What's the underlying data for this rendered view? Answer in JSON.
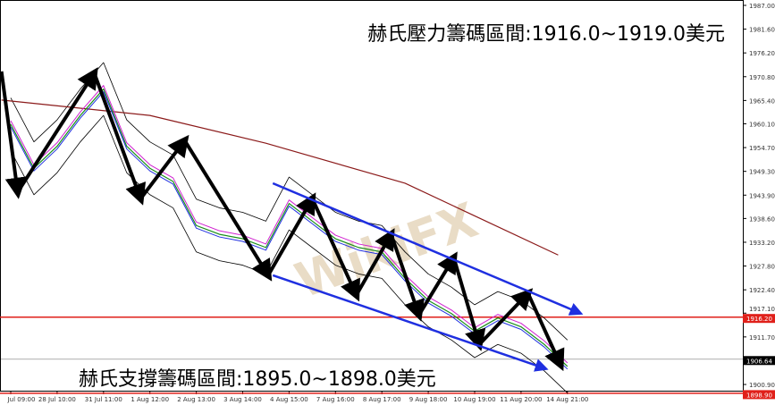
{
  "chart_data": {
    "type": "line",
    "annotations": {
      "resistance": "赫氏壓力籌碼區間:1916.0~1919.0美元",
      "support": "赫氏支撐籌碼區間:1895.0~1898.0美元"
    },
    "watermark": "WikiFX",
    "x_tick_labels": [
      "Jul 09:00",
      "28 Jul 10:00",
      "31 Jul 11:00",
      "1 Aug 12:00",
      "2 Aug 13:00",
      "3 Aug 14:00",
      "4 Aug 15:00",
      "7 Aug 16:00",
      "8 Aug 17:00",
      "9 Aug 18:00",
      "10 Aug 19:00",
      "11 Aug 20:00",
      "14 Aug 21:00"
    ],
    "y_tick_labels": [
      "1987.00",
      "1981.60",
      "1976.20",
      "1970.80",
      "1965.40",
      "1960.10",
      "1954.70",
      "1949.30",
      "1943.90",
      "1938.60",
      "1933.20",
      "1927.80",
      "1922.40",
      "1917.10",
      "1911.70",
      "1900.90"
    ],
    "ylim": [
      1895.5,
      1988.2
    ],
    "price": {
      "x": [
        0,
        0.5,
        1,
        1.5,
        2,
        2.5,
        3,
        3.5,
        4,
        4.5,
        5,
        5.5,
        6,
        6.5,
        7,
        7.5,
        8,
        8.5,
        9,
        9.5,
        10,
        10.5,
        11,
        11.5,
        12
      ],
      "y": [
        1960,
        1950,
        1955,
        1962,
        1968,
        1955,
        1950,
        1947,
        1937,
        1935,
        1934,
        1932,
        1942,
        1938,
        1934,
        1932,
        1931,
        1925,
        1920,
        1917,
        1913,
        1916,
        1914,
        1910,
        1905
      ],
      "color": "#1a8f1a"
    },
    "moving_average_long": {
      "x": [
        -0.2,
        3,
        5.5,
        8.5,
        11.8
      ],
      "y": [
        1965.5,
        1962,
        1955.7,
        1946.6,
        1930.3
      ],
      "color": "#8b1a1a"
    },
    "zigzag_arrows": {
      "x": [
        -0.2,
        0.15,
        1.8,
        2.8,
        3.75,
        5.55,
        6.5,
        7.45,
        8.2,
        8.8,
        9.55,
        10.1,
        11.15,
        11.85
      ],
      "y": [
        1972,
        1944.6,
        1971.6,
        1943.1,
        1956.3,
        1925.7,
        1943.1,
        1921.2,
        1935,
        1916.7,
        1929.7,
        1910,
        1921.6,
        1905.4
      ],
      "color": "#000000"
    },
    "channel": {
      "upper": {
        "x": [
          5.65,
          12.25
        ],
        "y": [
          1946.6,
          1917.2
        ]
      },
      "lower": {
        "x": [
          5.65,
          11.5
        ],
        "y": [
          1925.7,
          1904.6
        ]
      },
      "color": "#1f2fe0"
    },
    "horizontal_lines": [
      {
        "label": "1916.20",
        "value": 1916.2,
        "color": "#e0201a"
      },
      {
        "label": "1898.90",
        "value": 1898.9,
        "color": "#e0201a"
      },
      {
        "label": "1906.64",
        "value": 1906.64,
        "color": "#000000"
      }
    ]
  }
}
